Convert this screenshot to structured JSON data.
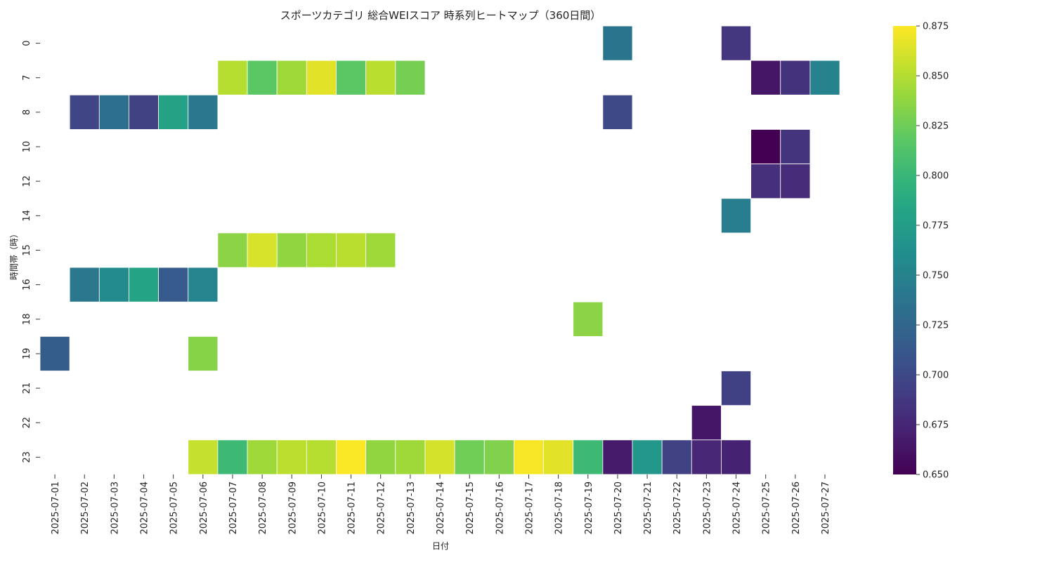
{
  "chart_data": {
    "type": "heatmap",
    "title": "スポーツカテゴリ 総合WEIスコア 時系列ヒートマップ（360日間）",
    "xlabel": "日付",
    "ylabel": "時間帯（時）",
    "colormap": "viridis",
    "x_categories": [
      "2025-07-01",
      "2025-07-02",
      "2025-07-03",
      "2025-07-04",
      "2025-07-05",
      "2025-07-06",
      "2025-07-07",
      "2025-07-08",
      "2025-07-09",
      "2025-07-10",
      "2025-07-11",
      "2025-07-12",
      "2025-07-13",
      "2025-07-14",
      "2025-07-15",
      "2025-07-16",
      "2025-07-17",
      "2025-07-18",
      "2025-07-19",
      "2025-07-20",
      "2025-07-21",
      "2025-07-22",
      "2025-07-23",
      "2025-07-24",
      "2025-07-25",
      "2025-07-26",
      "2025-07-27"
    ],
    "y_categories": [
      "0",
      "7",
      "8",
      "10",
      "12",
      "14",
      "15",
      "16",
      "18",
      "19",
      "21",
      "22",
      "23"
    ],
    "cells": [
      {
        "x": "2025-07-20",
        "y": "0",
        "value": 0.737
      },
      {
        "x": "2025-07-24",
        "y": "0",
        "value": 0.686
      },
      {
        "x": "2025-07-07",
        "y": "7",
        "value": 0.851
      },
      {
        "x": "2025-07-08",
        "y": "7",
        "value": 0.818
      },
      {
        "x": "2025-07-09",
        "y": "7",
        "value": 0.843
      },
      {
        "x": "2025-07-10",
        "y": "7",
        "value": 0.866
      },
      {
        "x": "2025-07-11",
        "y": "7",
        "value": 0.818
      },
      {
        "x": "2025-07-12",
        "y": "7",
        "value": 0.852
      },
      {
        "x": "2025-07-13",
        "y": "7",
        "value": 0.828
      },
      {
        "x": "2025-07-25",
        "y": "7",
        "value": 0.663
      },
      {
        "x": "2025-07-26",
        "y": "7",
        "value": 0.683
      },
      {
        "x": "2025-07-27",
        "y": "7",
        "value": 0.75
      },
      {
        "x": "2025-07-02",
        "y": "8",
        "value": 0.697
      },
      {
        "x": "2025-07-03",
        "y": "8",
        "value": 0.733
      },
      {
        "x": "2025-07-04",
        "y": "8",
        "value": 0.695
      },
      {
        "x": "2025-07-05",
        "y": "8",
        "value": 0.78
      },
      {
        "x": "2025-07-06",
        "y": "8",
        "value": 0.74
      },
      {
        "x": "2025-07-20",
        "y": "8",
        "value": 0.7
      },
      {
        "x": "2025-07-25",
        "y": "10",
        "value": 0.65
      },
      {
        "x": "2025-07-26",
        "y": "10",
        "value": 0.684
      },
      {
        "x": "2025-07-25",
        "y": "12",
        "value": 0.681
      },
      {
        "x": "2025-07-26",
        "y": "12",
        "value": 0.678
      },
      {
        "x": "2025-07-24",
        "y": "14",
        "value": 0.745
      },
      {
        "x": "2025-07-07",
        "y": "15",
        "value": 0.836
      },
      {
        "x": "2025-07-08",
        "y": "15",
        "value": 0.862
      },
      {
        "x": "2025-07-09",
        "y": "15",
        "value": 0.838
      },
      {
        "x": "2025-07-10",
        "y": "15",
        "value": 0.847
      },
      {
        "x": "2025-07-11",
        "y": "15",
        "value": 0.852
      },
      {
        "x": "2025-07-12",
        "y": "15",
        "value": 0.843
      },
      {
        "x": "2025-07-02",
        "y": "16",
        "value": 0.74
      },
      {
        "x": "2025-07-03",
        "y": "16",
        "value": 0.758
      },
      {
        "x": "2025-07-04",
        "y": "16",
        "value": 0.782
      },
      {
        "x": "2025-07-05",
        "y": "16",
        "value": 0.715
      },
      {
        "x": "2025-07-06",
        "y": "16",
        "value": 0.752
      },
      {
        "x": "2025-07-19",
        "y": "18",
        "value": 0.836
      },
      {
        "x": "2025-07-01",
        "y": "19",
        "value": 0.717
      },
      {
        "x": "2025-07-06",
        "y": "19",
        "value": 0.834
      },
      {
        "x": "2025-07-24",
        "y": "21",
        "value": 0.694
      },
      {
        "x": "2025-07-23",
        "y": "22",
        "value": 0.664
      },
      {
        "x": "2025-07-06",
        "y": "23",
        "value": 0.856
      },
      {
        "x": "2025-07-07",
        "y": "23",
        "value": 0.803
      },
      {
        "x": "2025-07-08",
        "y": "23",
        "value": 0.843
      },
      {
        "x": "2025-07-09",
        "y": "23",
        "value": 0.853
      },
      {
        "x": "2025-07-10",
        "y": "23",
        "value": 0.851
      },
      {
        "x": "2025-07-11",
        "y": "23",
        "value": 0.874
      },
      {
        "x": "2025-07-12",
        "y": "23",
        "value": 0.838
      },
      {
        "x": "2025-07-13",
        "y": "23",
        "value": 0.843
      },
      {
        "x": "2025-07-14",
        "y": "23",
        "value": 0.861
      },
      {
        "x": "2025-07-15",
        "y": "23",
        "value": 0.826
      },
      {
        "x": "2025-07-16",
        "y": "23",
        "value": 0.832
      },
      {
        "x": "2025-07-17",
        "y": "23",
        "value": 0.873
      },
      {
        "x": "2025-07-18",
        "y": "23",
        "value": 0.866
      },
      {
        "x": "2025-07-19",
        "y": "23",
        "value": 0.803
      },
      {
        "x": "2025-07-20",
        "y": "23",
        "value": 0.667
      },
      {
        "x": "2025-07-21",
        "y": "23",
        "value": 0.77
      },
      {
        "x": "2025-07-22",
        "y": "23",
        "value": 0.695
      },
      {
        "x": "2025-07-23",
        "y": "23",
        "value": 0.675
      },
      {
        "x": "2025-07-24",
        "y": "23",
        "value": 0.672
      }
    ],
    "colorbar": {
      "min": 0.65,
      "max": 0.875,
      "ticks": [
        "0.650",
        "0.675",
        "0.700",
        "0.725",
        "0.750",
        "0.775",
        "0.800",
        "0.825",
        "0.850",
        "0.875"
      ]
    },
    "grid": false,
    "legend": "colorbar-right"
  }
}
